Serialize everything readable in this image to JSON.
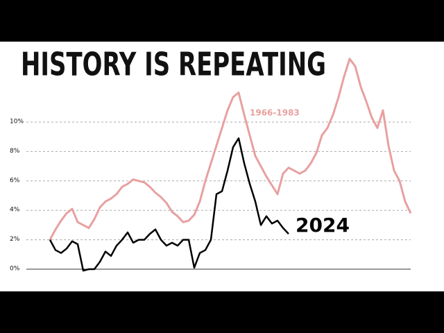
{
  "chart_data": {
    "type": "line",
    "title": "HISTORY IS REPEATING",
    "categories": [
      null,
      null,
      null,
      null,
      null,
      null,
      null,
      null,
      null,
      null,
      null,
      null,
      null,
      null,
      null,
      null,
      null,
      null,
      null,
      null,
      null,
      null,
      null,
      null,
      null,
      null,
      null,
      null,
      null,
      null,
      null,
      null,
      null,
      null,
      null,
      null,
      null,
      null,
      null,
      null,
      null,
      null,
      null,
      null,
      null,
      null,
      null,
      null,
      null,
      null,
      null,
      null,
      null,
      null,
      null,
      null,
      null,
      null,
      null,
      null,
      null,
      null,
      null,
      null,
      null,
      null
    ],
    "series": [
      {
        "name": "1966-1983",
        "color": "#e8a0a0",
        "values": [
          2.0,
          2.7,
          3.3,
          3.8,
          4.1,
          3.2,
          3.0,
          2.8,
          3.4,
          4.2,
          4.6,
          4.8,
          5.1,
          5.6,
          5.8,
          6.1,
          6.0,
          5.9,
          5.6,
          5.2,
          4.9,
          4.5,
          3.9,
          3.6,
          3.2,
          3.3,
          3.7,
          4.6,
          6.0,
          7.2,
          8.4,
          9.6,
          10.8,
          11.7,
          12.0,
          10.5,
          9.1,
          7.7,
          7.0,
          6.3,
          5.7,
          5.1,
          6.5,
          6.9,
          6.7,
          6.5,
          6.7,
          7.2,
          7.9,
          9.1,
          9.6,
          10.5,
          11.7,
          13.1,
          14.3,
          13.8,
          12.4,
          11.4,
          10.3,
          9.6,
          10.8,
          8.4,
          6.7,
          6.0,
          4.6,
          3.8
        ]
      },
      {
        "name": "2024",
        "color": "#000000",
        "values": [
          2.0,
          1.3,
          1.1,
          1.4,
          1.9,
          1.7,
          -0.1,
          0.0,
          0.0,
          0.5,
          1.2,
          0.9,
          1.6,
          2.0,
          2.5,
          1.8,
          2.0,
          2.0,
          2.4,
          2.7,
          2.0,
          1.6,
          1.8,
          1.6,
          2.0,
          2.0,
          0.1,
          1.1,
          1.3,
          2.0,
          5.1,
          5.3,
          6.7,
          8.3,
          8.9,
          7.2,
          5.8,
          4.6,
          3.0,
          3.6,
          3.1,
          3.3,
          2.8,
          2.4,
          null,
          null,
          null,
          null,
          null,
          null,
          null,
          null,
          null,
          null,
          null,
          null,
          null,
          null,
          null,
          null,
          null,
          null,
          null,
          null,
          null,
          null
        ]
      }
    ],
    "ylim": [
      -0.2,
      14.5
    ],
    "yticks": [
      {
        "value": 0,
        "label": "0%"
      },
      {
        "value": 2,
        "label": "2%"
      },
      {
        "value": 4,
        "label": "4%"
      },
      {
        "value": 6,
        "label": "6%"
      },
      {
        "value": 8,
        "label": "8%"
      },
      {
        "value": 10,
        "label": "10%"
      }
    ],
    "grid": true
  }
}
